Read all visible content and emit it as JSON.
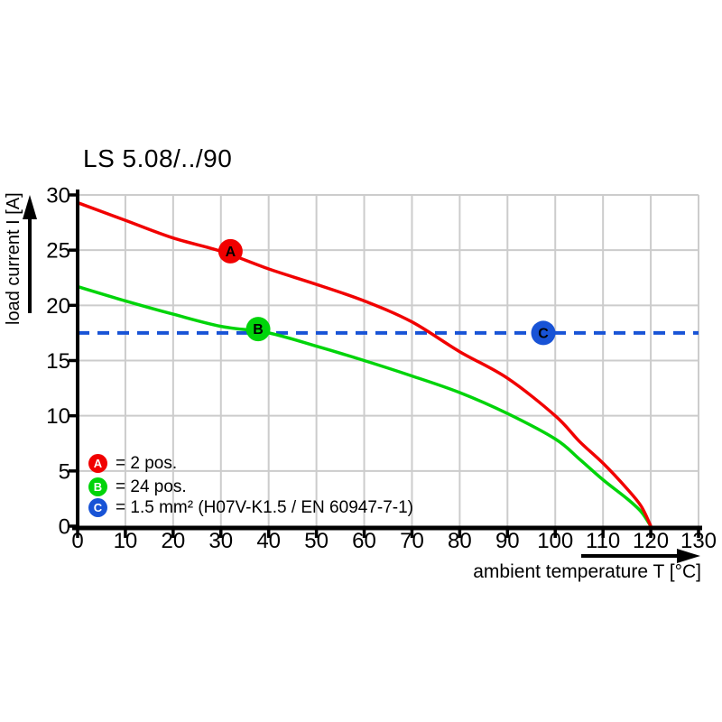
{
  "title": "LS 5.08/../90",
  "colors": {
    "red": "#f10000",
    "green": "#00d40a",
    "blue": "#1853d6",
    "grid": "#cccccc",
    "axis": "#000000"
  },
  "chart_data": {
    "type": "line",
    "title": "LS 5.08/../90",
    "xlabel": "ambient temperature T [°C]",
    "ylabel": "load current I [A]",
    "xlim": [
      0,
      130
    ],
    "ylim": [
      0,
      30
    ],
    "x_ticks": [
      0,
      10,
      20,
      30,
      40,
      50,
      60,
      70,
      80,
      90,
      100,
      110,
      120,
      130
    ],
    "y_ticks": [
      0,
      5,
      10,
      15,
      20,
      25,
      30
    ],
    "grid": true,
    "series": [
      {
        "name": "A",
        "label": "2 pos.",
        "color_key": "red",
        "style": "solid",
        "points": [
          [
            0,
            29.3
          ],
          [
            10,
            27.7
          ],
          [
            20,
            26.1
          ],
          [
            30,
            24.9
          ],
          [
            40,
            23.3
          ],
          [
            50,
            21.9
          ],
          [
            60,
            20.4
          ],
          [
            70,
            18.5
          ],
          [
            80,
            15.8
          ],
          [
            90,
            13.4
          ],
          [
            100,
            10.0
          ],
          [
            105,
            7.7
          ],
          [
            110,
            5.7
          ],
          [
            115,
            3.4
          ],
          [
            118,
            1.8
          ],
          [
            120,
            0
          ]
        ]
      },
      {
        "name": "B",
        "label": "24 pos.",
        "color_key": "green",
        "style": "solid",
        "points": [
          [
            0,
            21.7
          ],
          [
            10,
            20.4
          ],
          [
            20,
            19.2
          ],
          [
            30,
            18.1
          ],
          [
            40,
            17.5
          ],
          [
            50,
            16.3
          ],
          [
            60,
            15.0
          ],
          [
            70,
            13.6
          ],
          [
            80,
            12.1
          ],
          [
            90,
            10.2
          ],
          [
            100,
            7.9
          ],
          [
            105,
            6.1
          ],
          [
            110,
            4.2
          ],
          [
            115,
            2.5
          ],
          [
            118,
            1.3
          ],
          [
            120,
            0
          ]
        ]
      },
      {
        "name": "C",
        "label": "1.5 mm² (H07V-K1.5 / EN 60947-7-1)",
        "color_key": "blue",
        "style": "dashed",
        "points": [
          [
            0,
            17.5
          ],
          [
            130,
            17.5
          ]
        ]
      }
    ],
    "curve_markers": [
      {
        "letter": "A",
        "color_key": "red",
        "x": 32,
        "y": 24.9
      },
      {
        "letter": "B",
        "color_key": "green",
        "x": 37.8,
        "y": 17.85
      },
      {
        "letter": "C",
        "color_key": "blue",
        "x": 97.5,
        "y": 17.5
      }
    ]
  },
  "legend": {
    "items": [
      {
        "letter": "A",
        "color_key": "red",
        "text": "= 2 pos."
      },
      {
        "letter": "B",
        "color_key": "green",
        "text": "= 24 pos."
      },
      {
        "letter": "C",
        "color_key": "blue",
        "text": "= 1.5 mm² (H07V-K1.5 / EN 60947-7-1)"
      }
    ]
  }
}
